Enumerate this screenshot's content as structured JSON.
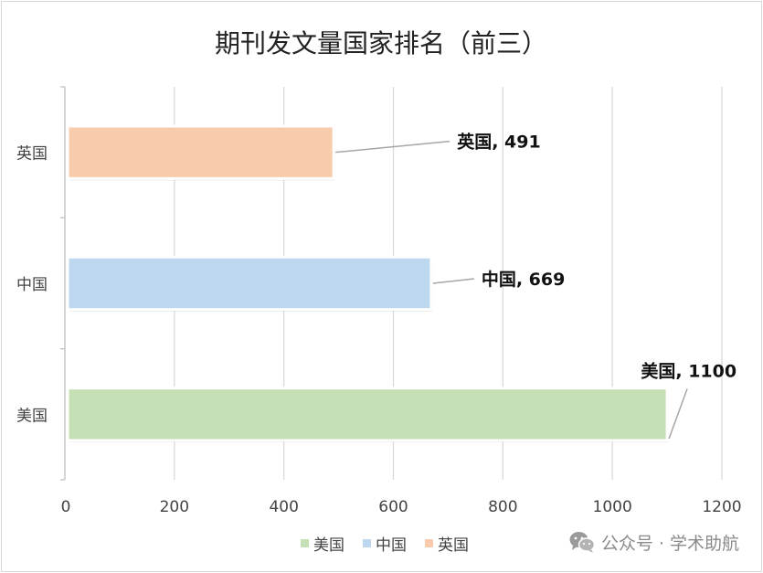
{
  "chart_data": {
    "type": "bar",
    "orientation": "horizontal",
    "title": "期刊发文量国家排名（前三）",
    "categories": [
      "美国",
      "中国",
      "英国"
    ],
    "values": [
      1100,
      669,
      491
    ],
    "data_labels": [
      "美国, 1100",
      "中国, 669",
      "英国, 491"
    ],
    "colors": [
      "#c5e0b4",
      "#bdd7ee",
      "#f8cbad"
    ],
    "xlim": [
      0,
      1200
    ],
    "xticks": [
      "0",
      "200",
      "400",
      "600",
      "800",
      "1000",
      "1200"
    ],
    "grid": true,
    "legend_position": "bottom",
    "legend": [
      {
        "name": "美国",
        "color": "#c5e0b4"
      },
      {
        "name": "中国",
        "color": "#bdd7ee"
      },
      {
        "name": "英国",
        "color": "#f8cbad"
      }
    ]
  },
  "watermark": {
    "icon": "wechat-icon",
    "text": "公众号 · 学术助航"
  }
}
